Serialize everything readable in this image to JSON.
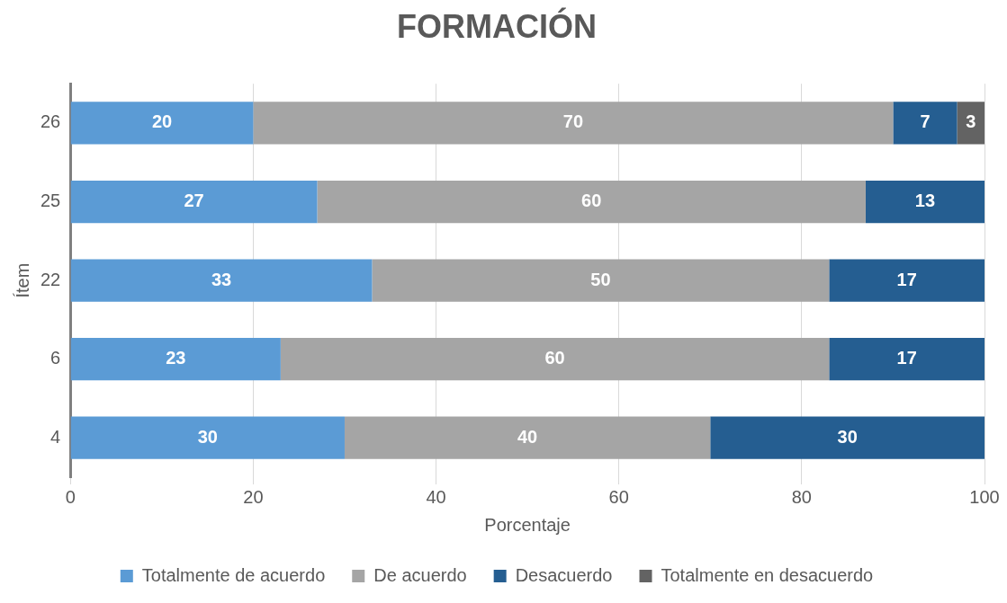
{
  "chart_data": {
    "type": "bar",
    "orientation": "horizontal",
    "stacked": true,
    "title": "FORMACIÓN",
    "xlabel": "Porcentaje",
    "ylabel": "Ítem",
    "categories": [
      "26",
      "25",
      "22",
      "6",
      "4"
    ],
    "series": [
      {
        "name": "Totalmente de acuerdo",
        "color": "#5b9bd5",
        "values": [
          20,
          27,
          33,
          23,
          30
        ]
      },
      {
        "name": "De acuerdo",
        "color": "#a5a5a5",
        "values": [
          70,
          60,
          50,
          60,
          40
        ]
      },
      {
        "name": "Desacuerdo",
        "color": "#255e91",
        "values": [
          7,
          13,
          17,
          17,
          30
        ]
      },
      {
        "name": "Totalmente en desacuerdo",
        "color": "#636363",
        "values": [
          3,
          null,
          null,
          null,
          null
        ]
      }
    ],
    "xlim": [
      0,
      100
    ],
    "xticks": [
      0,
      20,
      40,
      60,
      80,
      100
    ],
    "grid": "x",
    "legend": "bottom",
    "data_labels": true
  }
}
